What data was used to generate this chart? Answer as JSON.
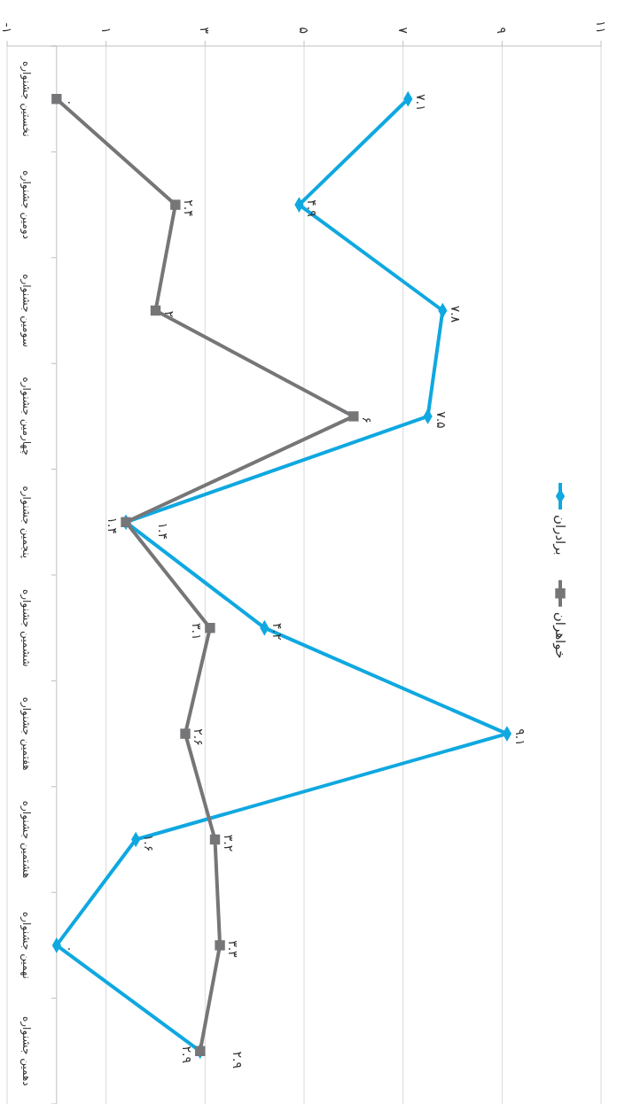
{
  "chart_data": {
    "type": "line",
    "categories": [
      "نخستین جشنواره",
      "دومین جشنواره",
      "سومین جشنواره",
      "چهارمین جشنواره",
      "پنجمین جشنواره",
      "ششمین جشنواره",
      "هفتمین جشنواره",
      "هشتمین جشنواره",
      "نهمین جشنواره",
      "دهمین جشنواره"
    ],
    "series": [
      {
        "name": "برادران",
        "color": "#0fa8e0",
        "marker": "diamond",
        "values": [
          7.1,
          4.9,
          7.8,
          7.5,
          1.4,
          4.2,
          9.1,
          1.6,
          0,
          2.9
        ],
        "value_labels": [
          "۷.۱",
          "۴.۹",
          "۷.۸",
          "۷.۵",
          "۱.۴",
          "۴.۲",
          "۹.۱",
          "۱.۶",
          "۰",
          "۲.۹"
        ]
      },
      {
        "name": "خواهران",
        "color": "#767679",
        "marker": "square",
        "values": [
          0,
          2.4,
          2,
          6,
          1.4,
          3.1,
          2.6,
          3.2,
          3.3,
          2.9
        ],
        "value_labels": [
          "۰",
          "۲.۴",
          "۲",
          "۶",
          "۱.۴",
          "۳.۱",
          "۲.۶",
          "۳.۲",
          "۳.۳",
          "۲.۹"
        ]
      }
    ],
    "orientation": "horizontal",
    "xlim": [
      -1,
      11
    ],
    "xticks": [
      {
        "value": -1,
        "label": "-۱"
      },
      {
        "value": 1,
        "label": "۱"
      },
      {
        "value": 3,
        "label": "۳"
      },
      {
        "value": 5,
        "label": "۵"
      },
      {
        "value": 7,
        "label": "۷"
      },
      {
        "value": 9,
        "label": "۹"
      },
      {
        "value": 11,
        "label": "۱۱"
      }
    ],
    "grid": "x",
    "legend": "right"
  }
}
